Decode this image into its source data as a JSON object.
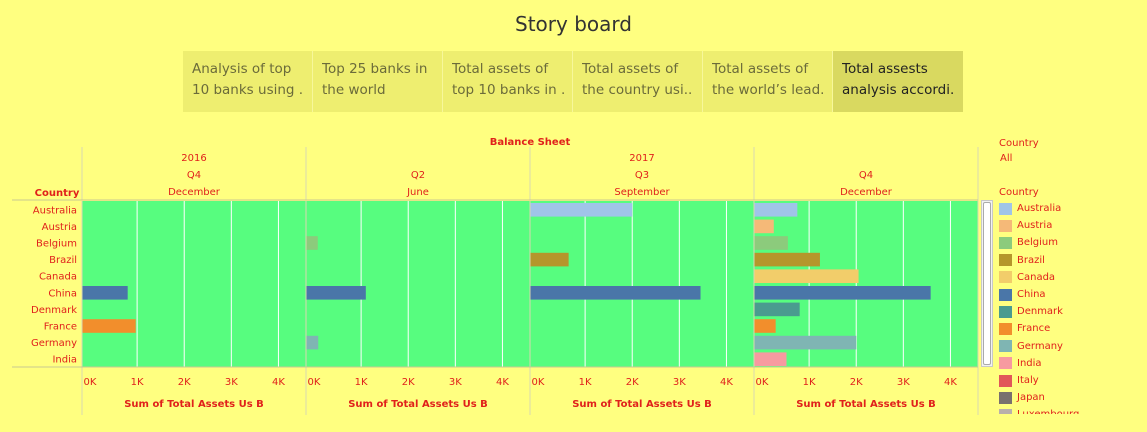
{
  "header": {
    "title": "Story board"
  },
  "tabs": [
    {
      "lines": [
        "Analysis of top",
        "10 banks using .."
      ],
      "active": false
    },
    {
      "lines": [
        "Top 25 banks in",
        "the world"
      ],
      "active": false
    },
    {
      "lines": [
        "Total assets of",
        "top 10 banks in .."
      ],
      "active": false
    },
    {
      "lines": [
        "Total assets of",
        "the country usi.."
      ],
      "active": false
    },
    {
      "lines": [
        "Total assets of",
        "the world’s lead.."
      ],
      "active": false
    },
    {
      "lines": [
        "Total assests",
        "analysis accordi.."
      ],
      "active": true
    }
  ],
  "filter": {
    "label": "Country",
    "value": "All"
  },
  "legend": {
    "title": "Country",
    "items": [
      {
        "name": "Australia",
        "color": "#a0c4e8"
      },
      {
        "name": "Austria",
        "color": "#f5b978"
      },
      {
        "name": "Belgium",
        "color": "#8ccb7c"
      },
      {
        "name": "Brazil",
        "color": "#b5962b"
      },
      {
        "name": "Canada",
        "color": "#f2cd6a"
      },
      {
        "name": "China",
        "color": "#4a76a8"
      },
      {
        "name": "Denmark",
        "color": "#4a9b8f"
      },
      {
        "name": "France",
        "color": "#f28e2c"
      },
      {
        "name": "Germany",
        "color": "#7fb5b3"
      },
      {
        "name": "India",
        "color": "#f79aa0"
      },
      {
        "name": "Italy",
        "color": "#e15759"
      },
      {
        "name": "Japan",
        "color": "#79706e"
      },
      {
        "name": "Luxembourg",
        "color": "#bab0ab"
      }
    ]
  },
  "chart_data": {
    "type": "bar",
    "orientation": "horizontal",
    "title": "Balance Sheet",
    "row_header": "Country",
    "categories": [
      "Australia",
      "Austria",
      "Belgium",
      "Brazil",
      "Canada",
      "China",
      "Denmark",
      "France",
      "Germany",
      "India"
    ],
    "xlabel": "Sum of Total Assets Us B",
    "xlim": [
      0,
      4500
    ],
    "xticks": [
      0,
      1000,
      2000,
      3000,
      4000
    ],
    "xtick_labels": [
      "0K",
      "1K",
      "2K",
      "3K",
      "4K"
    ],
    "plot_background": "#57fd7f",
    "grid": true,
    "years": [
      {
        "label": "2016",
        "span": 1
      },
      {
        "label": "2017",
        "span": 3
      }
    ],
    "panels": [
      {
        "quarter": "Q4",
        "month": "December",
        "values": [
          null,
          null,
          null,
          null,
          null,
          800,
          null,
          970,
          null,
          null
        ]
      },
      {
        "quarter": "Q2",
        "month": "June",
        "values": [
          null,
          null,
          80,
          null,
          null,
          1100,
          null,
          null,
          90,
          null
        ]
      },
      {
        "quarter": "Q3",
        "month": "September",
        "values": [
          2000,
          null,
          null,
          650,
          null,
          3450,
          null,
          null,
          null,
          null
        ]
      },
      {
        "quarter": "Q4",
        "month": "December",
        "values": [
          750,
          250,
          550,
          1230,
          2050,
          3580,
          800,
          290,
          2000,
          520
        ]
      }
    ]
  }
}
